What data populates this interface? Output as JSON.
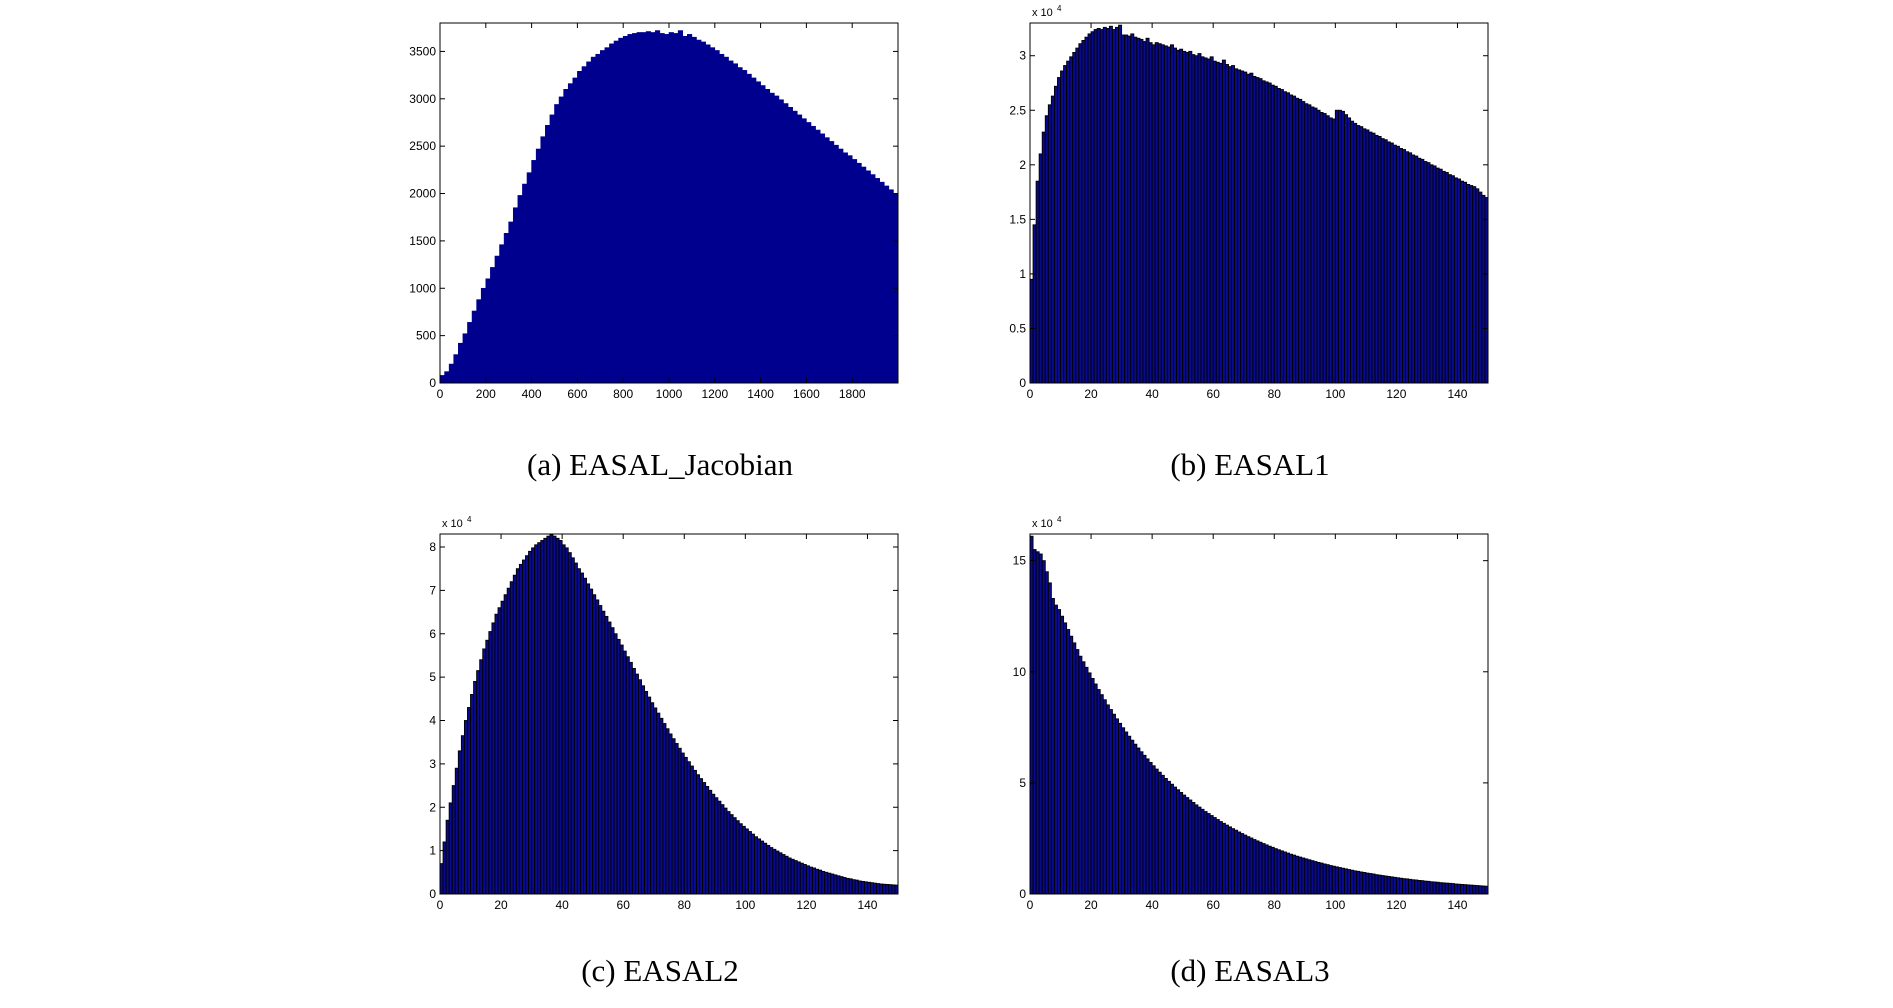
{
  "chart_data": [
    {
      "id": "a",
      "type": "bar",
      "style": "dense",
      "caption": "(a) EASAL_Jacobian",
      "exponent_label": "",
      "bar_color": "#00008F",
      "edge_color": "#00008F",
      "xlim": [
        0,
        2000
      ],
      "ylim": [
        0,
        3800
      ],
      "xticks": [
        0,
        200,
        400,
        600,
        800,
        1000,
        1200,
        1400,
        1600,
        1800
      ],
      "xtick_labels": [
        "0",
        "200",
        "400",
        "600",
        "800",
        "1000",
        "1200",
        "1400",
        "1600",
        "1800"
      ],
      "yticks": [
        0,
        500,
        1000,
        1500,
        2000,
        2500,
        3000,
        3500
      ],
      "ytick_labels": [
        "0",
        "500",
        "1000",
        "1500",
        "2000",
        "2500",
        "3000",
        "3500"
      ],
      "bin_width": 20,
      "x": [
        0,
        20,
        40,
        60,
        80,
        100,
        120,
        140,
        160,
        180,
        200,
        220,
        240,
        260,
        280,
        300,
        320,
        340,
        360,
        380,
        400,
        420,
        440,
        460,
        480,
        500,
        520,
        540,
        560,
        580,
        600,
        620,
        640,
        660,
        680,
        700,
        720,
        740,
        760,
        780,
        800,
        820,
        840,
        860,
        880,
        900,
        920,
        940,
        960,
        980,
        1000,
        1020,
        1040,
        1060,
        1080,
        1100,
        1120,
        1140,
        1160,
        1180,
        1200,
        1220,
        1240,
        1260,
        1280,
        1300,
        1320,
        1340,
        1360,
        1380,
        1400,
        1420,
        1440,
        1460,
        1480,
        1500,
        1520,
        1540,
        1560,
        1580,
        1600,
        1620,
        1640,
        1660,
        1680,
        1700,
        1720,
        1740,
        1760,
        1780,
        1800,
        1820,
        1840,
        1860,
        1880,
        1900,
        1920,
        1940,
        1960,
        1980
      ],
      "values": [
        80,
        120,
        200,
        300,
        420,
        520,
        640,
        760,
        880,
        1000,
        1100,
        1220,
        1340,
        1460,
        1580,
        1700,
        1850,
        1980,
        2100,
        2220,
        2350,
        2470,
        2600,
        2720,
        2830,
        2940,
        3020,
        3100,
        3160,
        3220,
        3290,
        3340,
        3390,
        3440,
        3470,
        3510,
        3540,
        3580,
        3610,
        3640,
        3660,
        3680,
        3690,
        3700,
        3700,
        3710,
        3700,
        3720,
        3690,
        3680,
        3700,
        3690,
        3720,
        3660,
        3680,
        3650,
        3620,
        3600,
        3570,
        3540,
        3510,
        3470,
        3440,
        3400,
        3370,
        3330,
        3300,
        3260,
        3220,
        3180,
        3140,
        3100,
        3060,
        3030,
        2990,
        2950,
        2910,
        2870,
        2830,
        2790,
        2750,
        2710,
        2670,
        2630,
        2590,
        2550,
        2510,
        2470,
        2430,
        2400,
        2360,
        2320,
        2280,
        2240,
        2200,
        2160,
        2120,
        2080,
        2040,
        2000
      ]
    },
    {
      "id": "b",
      "type": "bar",
      "style": "outlined",
      "caption": "(b) EASAL1",
      "exponent_label": "x 10",
      "exponent_power": "4",
      "bar_color": "#0A0A8C",
      "edge_color": "#000000",
      "xlim": [
        0,
        150
      ],
      "ylim": [
        0,
        33000
      ],
      "xticks": [
        0,
        20,
        40,
        60,
        80,
        100,
        120,
        140
      ],
      "xtick_labels": [
        "0",
        "20",
        "40",
        "60",
        "80",
        "100",
        "120",
        "140"
      ],
      "yticks": [
        0,
        5000,
        10000,
        15000,
        20000,
        25000,
        30000
      ],
      "ytick_labels": [
        "0",
        "0.5",
        "1",
        "1.5",
        "2",
        "2.5",
        "3"
      ],
      "bin_width": 1,
      "x": [
        0,
        1,
        2,
        3,
        4,
        5,
        6,
        7,
        8,
        9,
        10,
        11,
        12,
        13,
        14,
        15,
        16,
        17,
        18,
        19,
        20,
        21,
        22,
        23,
        24,
        25,
        26,
        27,
        28,
        29,
        30,
        31,
        32,
        33,
        34,
        35,
        36,
        37,
        38,
        39,
        40,
        41,
        42,
        43,
        44,
        45,
        46,
        47,
        48,
        49,
        50,
        51,
        52,
        53,
        54,
        55,
        56,
        57,
        58,
        59,
        60,
        61,
        62,
        63,
        64,
        65,
        66,
        67,
        68,
        69,
        70,
        71,
        72,
        73,
        74,
        75,
        76,
        77,
        78,
        79,
        80,
        81,
        82,
        83,
        84,
        85,
        86,
        87,
        88,
        89,
        90,
        91,
        92,
        93,
        94,
        95,
        96,
        97,
        98,
        99,
        100,
        101,
        102,
        103,
        104,
        105,
        106,
        107,
        108,
        109,
        110,
        111,
        112,
        113,
        114,
        115,
        116,
        117,
        118,
        119,
        120,
        121,
        122,
        123,
        124,
        125,
        126,
        127,
        128,
        129,
        130,
        131,
        132,
        133,
        134,
        135,
        136,
        137,
        138,
        139,
        140,
        141,
        142,
        143,
        144,
        145,
        146,
        147,
        148,
        149
      ],
      "values": [
        9500,
        14500,
        18500,
        21000,
        23000,
        24500,
        25500,
        26300,
        27200,
        28000,
        28600,
        29100,
        29500,
        29900,
        30300,
        30700,
        31100,
        31400,
        31700,
        32000,
        32200,
        32400,
        32500,
        32400,
        32600,
        32500,
        32700,
        32400,
        32600,
        32800,
        31900,
        31900,
        31800,
        32000,
        31700,
        31600,
        31500,
        31300,
        31600,
        31200,
        31000,
        31200,
        31100,
        31000,
        30900,
        30800,
        31000,
        30700,
        30500,
        30600,
        30400,
        30300,
        30400,
        30100,
        30000,
        30200,
        29900,
        29800,
        29700,
        29900,
        29500,
        29400,
        29300,
        29600,
        29200,
        29000,
        29100,
        28800,
        28700,
        28600,
        28500,
        28300,
        28400,
        28100,
        28000,
        27900,
        27700,
        27600,
        27500,
        27300,
        27200,
        27000,
        26900,
        26700,
        26600,
        26400,
        26300,
        26100,
        26000,
        25800,
        25600,
        25500,
        25300,
        25200,
        25000,
        24800,
        24700,
        24500,
        24300,
        24200,
        25000,
        25000,
        24900,
        24600,
        24300,
        24000,
        23800,
        23600,
        23500,
        23300,
        23200,
        23000,
        22900,
        22700,
        22600,
        22400,
        22300,
        22100,
        22000,
        21800,
        21700,
        21500,
        21400,
        21200,
        21100,
        20900,
        20800,
        20600,
        20500,
        20300,
        20200,
        20000,
        19900,
        19700,
        19600,
        19400,
        19300,
        19100,
        19000,
        18800,
        18700,
        18500,
        18400,
        18200,
        18100,
        18000,
        17800,
        17500,
        17200,
        17000
      ]
    },
    {
      "id": "c",
      "type": "bar",
      "style": "outlined",
      "caption": "(c) EASAL2",
      "exponent_label": "x 10",
      "exponent_power": "4",
      "bar_color": "#0A0A8C",
      "edge_color": "#000000",
      "xlim": [
        0,
        150
      ],
      "ylim": [
        0,
        83000
      ],
      "xticks": [
        0,
        20,
        40,
        60,
        80,
        100,
        120,
        140
      ],
      "xtick_labels": [
        "0",
        "20",
        "40",
        "60",
        "80",
        "100",
        "120",
        "140"
      ],
      "yticks": [
        0,
        10000,
        20000,
        30000,
        40000,
        50000,
        60000,
        70000,
        80000
      ],
      "ytick_labels": [
        "0",
        "1",
        "2",
        "3",
        "4",
        "5",
        "6",
        "7",
        "8"
      ],
      "bin_width": 1,
      "x": [
        0,
        1,
        2,
        3,
        4,
        5,
        6,
        7,
        8,
        9,
        10,
        11,
        12,
        13,
        14,
        15,
        16,
        17,
        18,
        19,
        20,
        21,
        22,
        23,
        24,
        25,
        26,
        27,
        28,
        29,
        30,
        31,
        32,
        33,
        34,
        35,
        36,
        37,
        38,
        39,
        40,
        41,
        42,
        43,
        44,
        45,
        46,
        47,
        48,
        49,
        50,
        51,
        52,
        53,
        54,
        55,
        56,
        57,
        58,
        59,
        60,
        61,
        62,
        63,
        64,
        65,
        66,
        67,
        68,
        69,
        70,
        71,
        72,
        73,
        74,
        75,
        76,
        77,
        78,
        79,
        80,
        81,
        82,
        83,
        84,
        85,
        86,
        87,
        88,
        89,
        90,
        91,
        92,
        93,
        94,
        95,
        96,
        97,
        98,
        99,
        100,
        101,
        102,
        103,
        104,
        105,
        106,
        107,
        108,
        109,
        110,
        111,
        112,
        113,
        114,
        115,
        116,
        117,
        118,
        119,
        120,
        121,
        122,
        123,
        124,
        125,
        126,
        127,
        128,
        129,
        130,
        131,
        132,
        133,
        134,
        135,
        136,
        137,
        138,
        139,
        140,
        141,
        142,
        143,
        144,
        145,
        146,
        147,
        148,
        149
      ],
      "values": [
        7000,
        12000,
        17000,
        21000,
        25000,
        29000,
        33000,
        36500,
        40000,
        43000,
        46000,
        49000,
        51500,
        54000,
        56500,
        58500,
        60500,
        62500,
        64500,
        66000,
        67500,
        69000,
        70500,
        72000,
        73500,
        75000,
        76000,
        77000,
        78000,
        79000,
        79800,
        80500,
        81000,
        81500,
        82000,
        82500,
        82800,
        82500,
        82000,
        81500,
        80500,
        79800,
        78700,
        77500,
        76300,
        75000,
        74000,
        72800,
        71500,
        70300,
        69000,
        67800,
        66500,
        65200,
        64000,
        62700,
        61400,
        60000,
        58700,
        57400,
        56000,
        54700,
        53400,
        52000,
        50700,
        49400,
        48000,
        46700,
        45400,
        44100,
        42900,
        41700,
        40500,
        39300,
        38100,
        36900,
        35800,
        34700,
        33600,
        32500,
        31500,
        30500,
        29500,
        28500,
        27500,
        26600,
        25700,
        24800,
        23900,
        23000,
        22200,
        21400,
        20600,
        19800,
        19000,
        18300,
        17600,
        16900,
        16200,
        15600,
        15000,
        14400,
        13800,
        13200,
        12700,
        12200,
        11700,
        11200,
        10700,
        10300,
        9900,
        9500,
        9100,
        8700,
        8300,
        8000,
        7700,
        7400,
        7100,
        6800,
        6500,
        6200,
        6000,
        5700,
        5500,
        5200,
        5000,
        4800,
        4600,
        4400,
        4200,
        4000,
        3800,
        3600,
        3500,
        3300,
        3200,
        3000,
        2900,
        2800,
        2700,
        2600,
        2500,
        2400,
        2300,
        2250,
        2200,
        2150,
        2100,
        2050
      ]
    },
    {
      "id": "d",
      "type": "bar",
      "style": "outlined",
      "caption": "(d) EASAL3",
      "exponent_label": "x 10",
      "exponent_power": "4",
      "bar_color": "#0A0A8C",
      "edge_color": "#000000",
      "xlim": [
        0,
        150
      ],
      "ylim": [
        0,
        162000
      ],
      "xticks": [
        0,
        20,
        40,
        60,
        80,
        100,
        120,
        140
      ],
      "xtick_labels": [
        "0",
        "20",
        "40",
        "60",
        "80",
        "100",
        "120",
        "140"
      ],
      "yticks": [
        0,
        50000,
        100000,
        150000
      ],
      "ytick_labels": [
        "0",
        "5",
        "10",
        "15"
      ],
      "bin_width": 1,
      "x": [
        0,
        1,
        2,
        3,
        4,
        5,
        6,
        7,
        8,
        9,
        10,
        11,
        12,
        13,
        14,
        15,
        16,
        17,
        18,
        19,
        20,
        21,
        22,
        23,
        24,
        25,
        26,
        27,
        28,
        29,
        30,
        31,
        32,
        33,
        34,
        35,
        36,
        37,
        38,
        39,
        40,
        41,
        42,
        43,
        44,
        45,
        46,
        47,
        48,
        49,
        50,
        51,
        52,
        53,
        54,
        55,
        56,
        57,
        58,
        59,
        60,
        61,
        62,
        63,
        64,
        65,
        66,
        67,
        68,
        69,
        70,
        71,
        72,
        73,
        74,
        75,
        76,
        77,
        78,
        79,
        80,
        81,
        82,
        83,
        84,
        85,
        86,
        87,
        88,
        89,
        90,
        91,
        92,
        93,
        94,
        95,
        96,
        97,
        98,
        99,
        100,
        101,
        102,
        103,
        104,
        105,
        106,
        107,
        108,
        109,
        110,
        111,
        112,
        113,
        114,
        115,
        116,
        117,
        118,
        119,
        120,
        121,
        122,
        123,
        124,
        125,
        126,
        127,
        128,
        129,
        130,
        131,
        132,
        133,
        134,
        135,
        136,
        137,
        138,
        139,
        140,
        141,
        142,
        143,
        144,
        145,
        146,
        147,
        148,
        149
      ],
      "values": [
        161000,
        155000,
        154000,
        153000,
        150000,
        145000,
        140000,
        133000,
        130000,
        128000,
        125000,
        122000,
        119000,
        116000,
        113000,
        110000,
        107000,
        104500,
        102000,
        99500,
        97000,
        94500,
        92000,
        89700,
        87400,
        85100,
        83000,
        80900,
        78800,
        76800,
        74800,
        72900,
        71000,
        69200,
        67400,
        65700,
        64000,
        62400,
        60800,
        59200,
        57700,
        56200,
        54800,
        53400,
        52000,
        50700,
        49400,
        48100,
        46900,
        45700,
        44500,
        43400,
        42300,
        41200,
        40100,
        39100,
        38100,
        37100,
        36200,
        35300,
        34400,
        33500,
        32600,
        31800,
        31000,
        30200,
        29400,
        28700,
        27900,
        27200,
        26500,
        25800,
        25200,
        24500,
        23900,
        23300,
        22700,
        22100,
        21500,
        21000,
        20400,
        19900,
        19400,
        18900,
        18400,
        17900,
        17500,
        17000,
        16600,
        16200,
        15800,
        15400,
        15000,
        14600,
        14200,
        13900,
        13500,
        13200,
        12800,
        12500,
        12200,
        11900,
        11600,
        11300,
        11000,
        10700,
        10400,
        10200,
        9900,
        9700,
        9400,
        9200,
        9000,
        8700,
        8500,
        8300,
        8100,
        7900,
        7700,
        7500,
        7300,
        7100,
        6900,
        6800,
        6600,
        6400,
        6300,
        6100,
        6000,
        5800,
        5700,
        5500,
        5400,
        5300,
        5100,
        5000,
        4900,
        4800,
        4700,
        4500,
        4400,
        4300,
        4200,
        4100,
        4000,
        3900,
        3800,
        3700,
        3600,
        3500
      ]
    }
  ]
}
